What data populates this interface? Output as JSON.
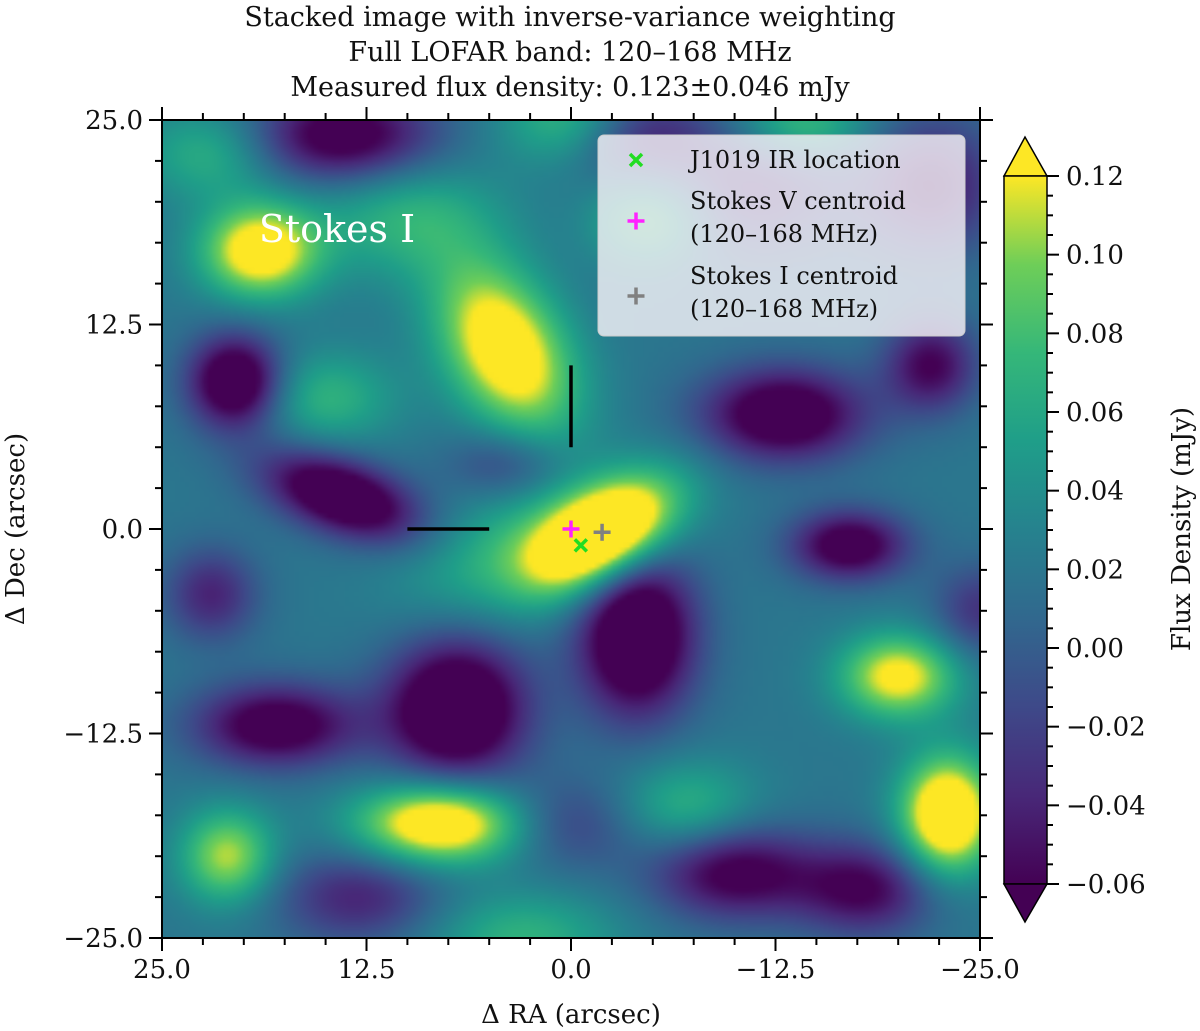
{
  "chart_data": {
    "type": "heatmap",
    "title_lines": [
      "Stacked image with inverse-variance weighting",
      "Full LOFAR band: 120–168 MHz",
      "Measured flux density: 0.123±0.046 mJy"
    ],
    "panel_label": "Stokes I",
    "xlabel": "Δ RA (arcsec)",
    "ylabel": "Δ Dec (arcsec)",
    "xlim": [
      25.0,
      -25.0
    ],
    "ylim": [
      -25.0,
      25.0
    ],
    "x_ticks": [
      "25.0",
      "12.5",
      "0.0",
      "−12.5",
      "−25.0"
    ],
    "y_ticks": [
      "25.0",
      "12.5",
      "0.0",
      "−12.5",
      "−25.0"
    ],
    "colorbar": {
      "label": "Flux Density (mJy)",
      "min": -0.06,
      "max": 0.12,
      "extend": "both",
      "colormap": "viridis",
      "ticks": [
        "0.12",
        "0.10",
        "0.08",
        "0.06",
        "0.04",
        "0.02",
        "0.00",
        "−0.02",
        "−0.04",
        "−0.06"
      ]
    },
    "grid": false,
    "legend_placement": "upper-right",
    "markers": [
      {
        "label": "J1019 IR location",
        "symbol": "x",
        "color": "#22dd22",
        "x": -0.6,
        "y": -1.0
      },
      {
        "label": "Stokes V centroid (120–168 MHz)",
        "symbol": "+",
        "color": "#ff22ff",
        "x": 0.0,
        "y": 0.0
      },
      {
        "label": "Stokes I centroid (120–168 MHz)",
        "symbol": "+",
        "color": "#808080",
        "x": -1.9,
        "y": -0.2
      }
    ],
    "crosshair": {
      "vertical": {
        "x": 0.0,
        "y_from": 5.0,
        "y_to": 10.0
      },
      "horizontal": {
        "y": 0.0,
        "x_from": 10.0,
        "x_to": 5.0
      }
    },
    "blobs": [
      {
        "x": -2.0,
        "y": -0.3,
        "sx": 3.4,
        "sy": 1.9,
        "rot": -32,
        "a": 0.175
      },
      {
        "x": 4.0,
        "y": -1.5,
        "sx": 4.5,
        "sy": 2.5,
        "rot": -20,
        "a": 0.05
      },
      {
        "x": 4.0,
        "y": 11.0,
        "sx": 2.5,
        "sy": 4.0,
        "rot": -30,
        "a": 0.13
      },
      {
        "x": 19.0,
        "y": 17.0,
        "sx": 2.5,
        "sy": 2.0,
        "rot": 0,
        "a": 0.125
      },
      {
        "x": 22.0,
        "y": 23.0,
        "sx": 3.0,
        "sy": 2.0,
        "rot": 0,
        "a": 0.05
      },
      {
        "x": 8.0,
        "y": -18.0,
        "sx": 3.5,
        "sy": 1.7,
        "rot": 0,
        "a": 0.14
      },
      {
        "x": -23.0,
        "y": -17.5,
        "sx": 2.0,
        "sy": 2.5,
        "rot": 0,
        "a": 0.15
      },
      {
        "x": -20.0,
        "y": -9.0,
        "sx": 2.5,
        "sy": 1.8,
        "rot": 0,
        "a": 0.11
      },
      {
        "x": 21.0,
        "y": -20.0,
        "sx": 2.0,
        "sy": 2.0,
        "rot": 0,
        "a": 0.09
      },
      {
        "x": -5.0,
        "y": 19.0,
        "sx": 2.5,
        "sy": 2.0,
        "rot": 0,
        "a": 0.07
      },
      {
        "x": -14.0,
        "y": 24.5,
        "sx": 3.0,
        "sy": 1.5,
        "rot": 0,
        "a": 0.07
      },
      {
        "x": 15.0,
        "y": 8.0,
        "sx": 3.0,
        "sy": 2.0,
        "rot": 0,
        "a": 0.05
      },
      {
        "x": 0.0,
        "y": 25.0,
        "sx": 3.0,
        "sy": 2.0,
        "rot": 0,
        "a": 0.06
      },
      {
        "x": 3.0,
        "y": -25.0,
        "sx": 4.0,
        "sy": 2.0,
        "rot": 0,
        "a": 0.05
      },
      {
        "x": -7.0,
        "y": -17.0,
        "sx": 3.0,
        "sy": 2.0,
        "rot": 0,
        "a": 0.05
      },
      {
        "x": 10.0,
        "y": 19.0,
        "sx": 4.0,
        "sy": 2.5,
        "rot": 0,
        "a": 0.05
      },
      {
        "x": -11.0,
        "y": 21.0,
        "sx": 4.0,
        "sy": 3.0,
        "rot": 0,
        "a": -0.06
      },
      {
        "x": 7.0,
        "y": -11.0,
        "sx": 3.0,
        "sy": 3.0,
        "rot": 0,
        "a": -0.13
      },
      {
        "x": -4.0,
        "y": -6.5,
        "sx": 2.5,
        "sy": 3.5,
        "rot": 0,
        "a": -0.13
      },
      {
        "x": 20.5,
        "y": 9.0,
        "sx": 2.0,
        "sy": 2.0,
        "rot": 0,
        "a": -0.12
      },
      {
        "x": 14.0,
        "y": 2.0,
        "sx": 3.5,
        "sy": 1.6,
        "rot": 20,
        "a": -0.12
      },
      {
        "x": -13.0,
        "y": 7.0,
        "sx": 3.5,
        "sy": 2.0,
        "rot": 0,
        "a": -0.11
      },
      {
        "x": 18.0,
        "y": -12.0,
        "sx": 3.5,
        "sy": 1.8,
        "rot": 0,
        "a": -0.1
      },
      {
        "x": 14.0,
        "y": 24.0,
        "sx": 4.0,
        "sy": 2.0,
        "rot": 0,
        "a": -0.1
      },
      {
        "x": -17.0,
        "y": -1.0,
        "sx": 2.5,
        "sy": 1.5,
        "rot": 0,
        "a": -0.1
      },
      {
        "x": -22.0,
        "y": 10.0,
        "sx": 2.0,
        "sy": 2.0,
        "rot": 0,
        "a": -0.08
      },
      {
        "x": -22.0,
        "y": 21.0,
        "sx": 3.0,
        "sy": 3.0,
        "rot": 0,
        "a": -0.07
      },
      {
        "x": -10.0,
        "y": -21.0,
        "sx": 3.5,
        "sy": 2.0,
        "rot": 0,
        "a": -0.09
      },
      {
        "x": -18.0,
        "y": -22.0,
        "sx": 3.0,
        "sy": 2.0,
        "rot": 0,
        "a": -0.08
      },
      {
        "x": 22.0,
        "y": -4.0,
        "sx": 2.0,
        "sy": 2.0,
        "rot": 0,
        "a": -0.06
      },
      {
        "x": -4.0,
        "y": 24.0,
        "sx": 3.0,
        "sy": 2.0,
        "rot": 0,
        "a": -0.06
      },
      {
        "x": -25.0,
        "y": -5.0,
        "sx": 2.0,
        "sy": 2.0,
        "rot": 0,
        "a": -0.05
      },
      {
        "x": 13.0,
        "y": -22.5,
        "sx": 3.5,
        "sy": 2.0,
        "rot": 0,
        "a": -0.06
      },
      {
        "x": 4.0,
        "y": 4.0,
        "sx": 2.5,
        "sy": 1.5,
        "rot": 0,
        "a": -0.04
      },
      {
        "x": 0.0,
        "y": -18.0,
        "sx": 3.0,
        "sy": 2.0,
        "rot": 0,
        "a": -0.04
      }
    ],
    "background_level": 0.02
  }
}
